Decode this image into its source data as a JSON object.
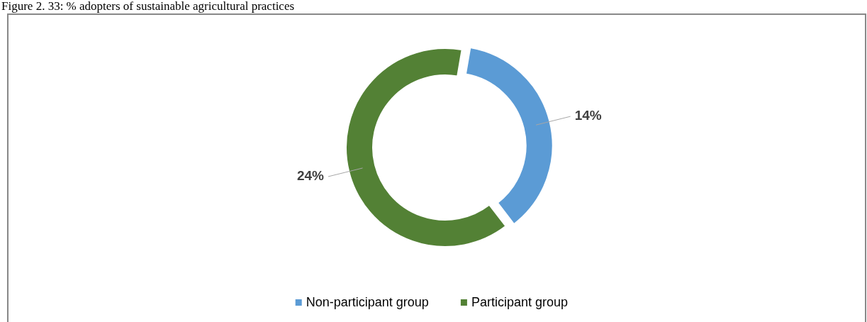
{
  "chart_data": {
    "type": "donut",
    "title": "Figure 2. 33: % adopters of sustainable agricultural practices",
    "categories": [
      "Non-participant group",
      "Participant group"
    ],
    "values": [
      14,
      24
    ],
    "colors": [
      "#5b9bd5",
      "#538135"
    ],
    "value_labels": [
      "14%",
      "24%"
    ],
    "legend": "bottom"
  }
}
